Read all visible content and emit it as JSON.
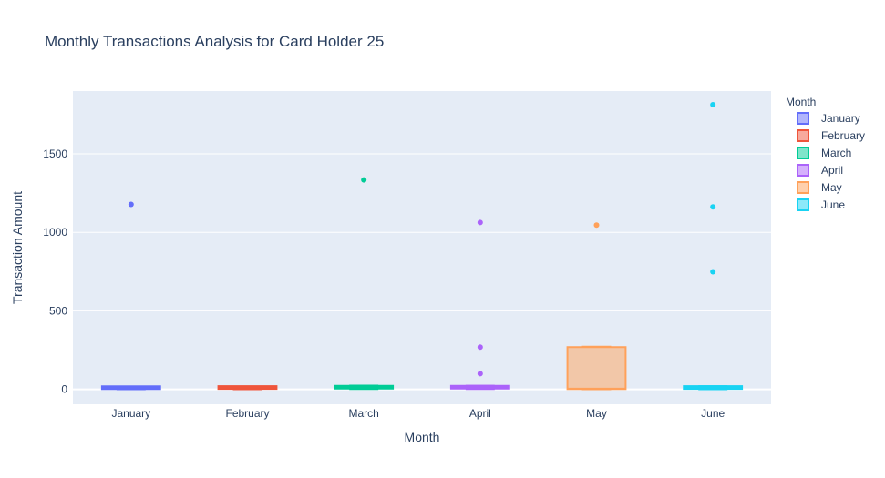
{
  "chart_data": {
    "type": "box",
    "title": "Monthly Transactions Analysis for Card Holder 25",
    "xlabel": "Month",
    "ylabel": "Transaction Amount",
    "ylim": [
      -95,
      1900
    ],
    "yticks": [
      0,
      500,
      1000,
      1500
    ],
    "ytick_labels": [
      "0",
      "500",
      "1000",
      "1500"
    ],
    "legend_title": "Month",
    "legend_position": "top-right, outside plot",
    "categories": [
      "January",
      "February",
      "March",
      "April",
      "May",
      "June"
    ],
    "series": [
      {
        "name": "January",
        "color": "#636efa",
        "q1": 2,
        "median": 10,
        "q3": 16,
        "lower_fence": 1,
        "upper_fence": 18,
        "outliers": [
          1178
        ]
      },
      {
        "name": "February",
        "color": "#ef553b",
        "q1": 3,
        "median": 10,
        "q3": 15,
        "lower_fence": 1,
        "upper_fence": 17,
        "outliers": []
      },
      {
        "name": "March",
        "color": "#00cc96",
        "q1": 5,
        "median": 14,
        "q3": 22,
        "lower_fence": 2,
        "upper_fence": 24,
        "outliers": [
          1334
        ]
      },
      {
        "name": "April",
        "color": "#ab63fa",
        "q1": 5,
        "median": 12,
        "q3": 20,
        "lower_fence": 2,
        "upper_fence": 23,
        "outliers": [
          100,
          269,
          1063
        ]
      },
      {
        "name": "May",
        "color": "#ffa15a",
        "q1": 2,
        "median": 4,
        "q3": 269,
        "lower_fence": 1,
        "upper_fence": 272,
        "outliers": [
          1046
        ]
      },
      {
        "name": "June",
        "color": "#19d3f3",
        "q1": 3,
        "median": 10,
        "q3": 18,
        "lower_fence": 1,
        "upper_fence": 20,
        "outliers": [
          749,
          1162,
          1813
        ]
      }
    ]
  }
}
